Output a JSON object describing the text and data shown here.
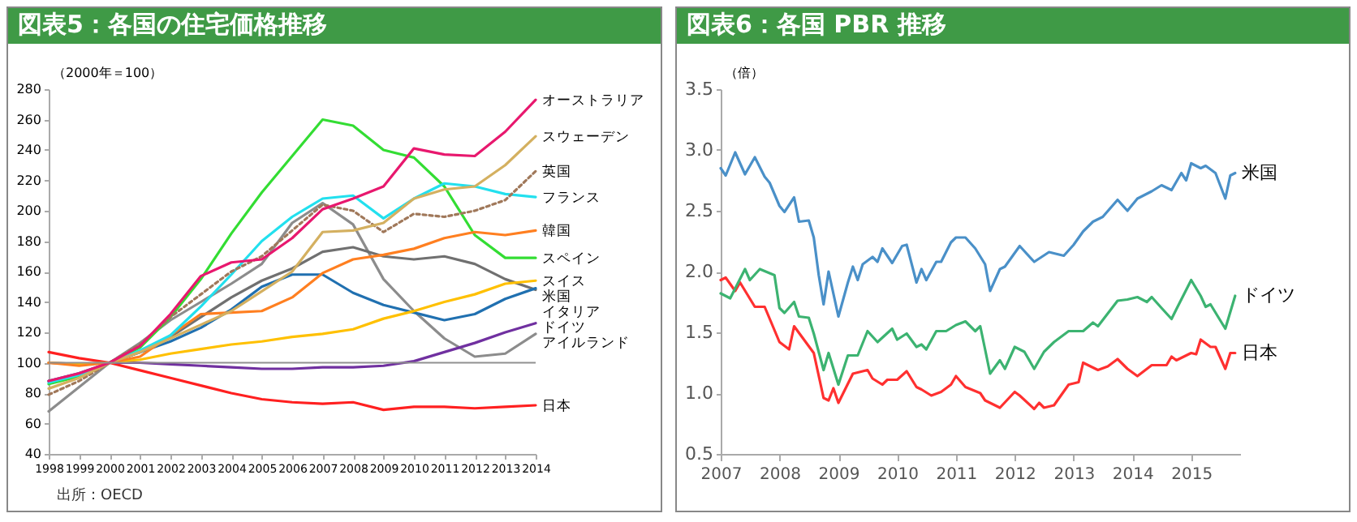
{
  "chart_data": [
    {
      "type": "line",
      "title": "図表5：各国の住宅価格推移",
      "ylabel": "（2000年＝100）",
      "categories": [
        "1998",
        "1999",
        "2000",
        "2001",
        "2002",
        "2003",
        "2004",
        "2005",
        "2006",
        "2007",
        "2008",
        "2009",
        "2010",
        "2011",
        "2012",
        "2013",
        "2014"
      ],
      "ylim": [
        40,
        280
      ],
      "yticks": [
        40,
        60,
        80,
        100,
        120,
        140,
        160,
        180,
        200,
        220,
        240,
        260,
        280
      ],
      "ref_lines": [
        {
          "axis": "y",
          "value": 100,
          "color": "#909090"
        }
      ],
      "series": [
        {
          "name": "オーストラリア",
          "color": "#e8186e",
          "values": [
            88,
            93,
            100,
            111,
            132,
            157,
            166,
            168,
            182,
            201,
            208,
            216,
            241,
            237,
            236,
            252,
            273
          ]
        },
        {
          "name": "スウェーデン",
          "color": "#d4b060",
          "values": [
            83,
            90,
            100,
            107,
            116,
            125,
            134,
            147,
            160,
            186,
            187,
            192,
            208,
            214,
            216,
            230,
            249
          ]
        },
        {
          "name": "英国",
          "color": "#a0785a",
          "line_style": "dotted",
          "values": [
            79,
            88,
            100,
            112,
            130,
            145,
            160,
            170,
            187,
            204,
            200,
            186,
            198,
            196,
            200,
            207,
            226
          ]
        },
        {
          "name": "フランス",
          "color": "#22e0ee",
          "values": [
            87,
            92,
            100,
            108,
            118,
            137,
            158,
            180,
            196,
            208,
            210,
            195,
            208,
            218,
            216,
            211,
            209
          ]
        },
        {
          "name": "韓国",
          "color": "#ff7f20",
          "values": [
            100,
            98,
            100,
            104,
            118,
            132,
            133,
            134,
            143,
            159,
            168,
            171,
            175,
            182,
            186,
            184,
            187
          ]
        },
        {
          "name": "スペイン",
          "color": "#33dd33",
          "values": [
            86,
            91,
            100,
            110,
            130,
            155,
            185,
            212,
            236,
            260,
            256,
            240,
            235,
            216,
            184,
            169,
            169
          ]
        },
        {
          "name": "スイス",
          "color": "#ffc000",
          "values": [
            100,
            99,
            100,
            102,
            106,
            109,
            112,
            114,
            117,
            119,
            122,
            129,
            134,
            140,
            145,
            152,
            154
          ]
        },
        {
          "name": "米国",
          "color": "#2070b0",
          "values": [
            88,
            93,
            100,
            107,
            114,
            123,
            135,
            150,
            158,
            158,
            146,
            138,
            133,
            128,
            132,
            142,
            149
          ]
        },
        {
          "name": "イタリア",
          "color": "#707070",
          "values": [
            88,
            92,
            100,
            107,
            117,
            130,
            143,
            154,
            162,
            173,
            176,
            170,
            168,
            170,
            165,
            155,
            148
          ]
        },
        {
          "name": "ドイツ",
          "color": "#7030a0",
          "values": [
            100,
            99,
            100,
            100,
            99,
            98,
            97,
            96,
            96,
            97,
            97,
            98,
            101,
            107,
            113,
            120,
            126
          ]
        },
        {
          "name": "アイルランド",
          "color": "#8c8c8c",
          "values": [
            68,
            84,
            100,
            113,
            128,
            140,
            152,
            165,
            192,
            205,
            191,
            155,
            134,
            116,
            104,
            106,
            119
          ]
        },
        {
          "name": "日本",
          "color": "#ff2020",
          "values": [
            107,
            103,
            100,
            95,
            90,
            85,
            80,
            76,
            74,
            73,
            74,
            69,
            71,
            71,
            70,
            71,
            72
          ]
        }
      ],
      "annotations": [
        "出所：OECD"
      ]
    },
    {
      "type": "line",
      "title": "図表6：各国 PBR 推移",
      "ylabel": "（倍）",
      "xlim": [
        "2007-01",
        "2015-11"
      ],
      "xticks": [
        "2007",
        "2008",
        "2009",
        "2010",
        "2011",
        "2012",
        "2013",
        "2014",
        "2015"
      ],
      "ylim": [
        0.5,
        3.5
      ],
      "yticks": [
        0.5,
        {
          "value": 1,
          "label": "1.0"
        },
        1.5,
        {
          "value": 2,
          "label": "2.0"
        },
        2.5,
        {
          "value": 3,
          "label": "3.0"
        },
        3.5
      ],
      "series": [
        {
          "name": "米国",
          "color": "#4a90c8",
          "x": [
            "2007-01",
            "2007-02",
            "2007-04",
            "2007-06",
            "2007-08",
            "2007-10",
            "2007-11",
            "2008-01",
            "2008-02",
            "2008-04",
            "2008-05",
            "2008-07",
            "2008-08",
            "2008-09",
            "2008-10",
            "2008-11",
            "2009-01",
            "2009-03",
            "2009-04",
            "2009-05",
            "2009-06",
            "2009-08",
            "2009-09",
            "2009-10",
            "2009-12",
            "2010-02",
            "2010-03",
            "2010-05",
            "2010-06",
            "2010-07",
            "2010-09",
            "2010-10",
            "2010-12",
            "2011-01",
            "2011-03",
            "2011-05",
            "2011-07",
            "2011-08",
            "2011-10",
            "2011-11",
            "2012-02",
            "2012-05",
            "2012-08",
            "2012-11",
            "2013-01",
            "2013-03",
            "2013-05",
            "2013-07",
            "2013-10",
            "2013-12",
            "2014-02",
            "2014-05",
            "2014-07",
            "2014-09",
            "2014-11",
            "2014-12",
            "2015-01",
            "2015-03",
            "2015-04",
            "2015-06",
            "2015-08",
            "2015-09",
            "2015-10"
          ],
          "values": [
            2.85,
            2.79,
            2.98,
            2.8,
            2.94,
            2.78,
            2.73,
            2.54,
            2.49,
            2.61,
            2.41,
            2.42,
            2.28,
            1.97,
            1.73,
            2.0,
            1.63,
            1.91,
            2.04,
            1.93,
            2.06,
            2.12,
            2.08,
            2.19,
            2.07,
            2.21,
            2.22,
            1.91,
            2.02,
            1.93,
            2.08,
            2.08,
            2.24,
            2.28,
            2.28,
            2.19,
            2.06,
            1.84,
            2.02,
            2.04,
            2.21,
            2.08,
            2.16,
            2.13,
            2.22,
            2.33,
            2.41,
            2.45,
            2.59,
            2.5,
            2.6,
            2.66,
            2.71,
            2.67,
            2.81,
            2.75,
            2.89,
            2.85,
            2.87,
            2.81,
            2.6,
            2.79,
            2.81
          ]
        },
        {
          "name": "ドイツ",
          "color": "#3cb371",
          "x": [
            "2007-01",
            "2007-03",
            "2007-06",
            "2007-07",
            "2007-09",
            "2007-12",
            "2008-01",
            "2008-02",
            "2008-04",
            "2008-05",
            "2008-07",
            "2008-08",
            "2008-10",
            "2008-11",
            "2009-01",
            "2009-03",
            "2009-05",
            "2009-07",
            "2009-09",
            "2009-12",
            "2010-01",
            "2010-03",
            "2010-05",
            "2010-06",
            "2010-07",
            "2010-09",
            "2010-11",
            "2011-01",
            "2011-03",
            "2011-05",
            "2011-06",
            "2011-07",
            "2011-08",
            "2011-10",
            "2011-11",
            "2012-01",
            "2012-03",
            "2012-05",
            "2012-07",
            "2012-09",
            "2012-12",
            "2013-03",
            "2013-05",
            "2013-06",
            "2013-10",
            "2013-12",
            "2014-02",
            "2014-04",
            "2014-05",
            "2014-07",
            "2014-09",
            "2014-10",
            "2015-01",
            "2015-03",
            "2015-04",
            "2015-05",
            "2015-08",
            "2015-10"
          ],
          "values": [
            1.82,
            1.78,
            2.02,
            1.93,
            2.02,
            1.97,
            1.7,
            1.66,
            1.75,
            1.63,
            1.62,
            1.49,
            1.19,
            1.33,
            1.07,
            1.31,
            1.31,
            1.51,
            1.42,
            1.53,
            1.44,
            1.49,
            1.38,
            1.4,
            1.36,
            1.51,
            1.51,
            1.56,
            1.59,
            1.51,
            1.55,
            1.36,
            1.16,
            1.27,
            1.2,
            1.38,
            1.34,
            1.2,
            1.34,
            1.42,
            1.51,
            1.51,
            1.58,
            1.55,
            1.76,
            1.77,
            1.79,
            1.75,
            1.79,
            1.7,
            1.61,
            1.69,
            1.93,
            1.8,
            1.71,
            1.73,
            1.53,
            1.8
          ]
        },
        {
          "name": "日本",
          "color": "#ff3030",
          "x": [
            "2007-01",
            "2007-02",
            "2007-04",
            "2007-05",
            "2007-08",
            "2007-10",
            "2008-01",
            "2008-03",
            "2008-04",
            "2008-06",
            "2008-08",
            "2008-10",
            "2008-11",
            "2008-12",
            "2009-01",
            "2009-04",
            "2009-07",
            "2009-08",
            "2009-10",
            "2009-11",
            "2010-01",
            "2010-03",
            "2010-05",
            "2010-06",
            "2010-08",
            "2010-10",
            "2010-12",
            "2011-01",
            "2011-03",
            "2011-06",
            "2011-07",
            "2011-10",
            "2012-01",
            "2012-02",
            "2012-05",
            "2012-06",
            "2012-07",
            "2012-09",
            "2012-12",
            "2013-02",
            "2013-03",
            "2013-06",
            "2013-08",
            "2013-10",
            "2013-12",
            "2014-02",
            "2014-05",
            "2014-08",
            "2014-09",
            "2014-10",
            "2015-01",
            "2015-02",
            "2015-03",
            "2015-05",
            "2015-06",
            "2015-08",
            "2015-09",
            "2015-10"
          ],
          "values": [
            1.93,
            1.95,
            1.84,
            1.91,
            1.71,
            1.71,
            1.42,
            1.36,
            1.55,
            1.44,
            1.33,
            0.96,
            0.94,
            1.04,
            0.92,
            1.16,
            1.19,
            1.12,
            1.07,
            1.11,
            1.11,
            1.18,
            1.05,
            1.03,
            0.98,
            1.01,
            1.07,
            1.14,
            1.05,
            1.0,
            0.94,
            0.88,
            1.01,
            0.98,
            0.87,
            0.92,
            0.88,
            0.9,
            1.07,
            1.09,
            1.25,
            1.19,
            1.22,
            1.28,
            1.2,
            1.14,
            1.23,
            1.23,
            1.3,
            1.27,
            1.33,
            1.32,
            1.44,
            1.38,
            1.38,
            1.2,
            1.33,
            1.33
          ]
        }
      ]
    }
  ]
}
